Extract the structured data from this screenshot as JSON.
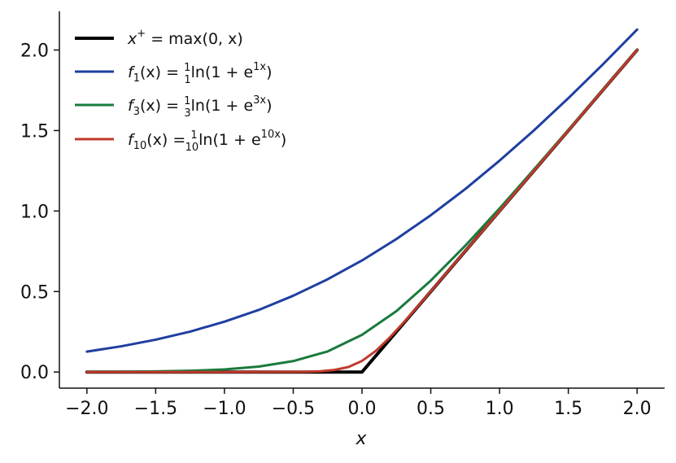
{
  "chart_data": {
    "type": "line",
    "xlabel": "x",
    "ylabel": "",
    "xlim": [
      -2.2,
      2.2
    ],
    "ylim": [
      -0.1,
      2.24
    ],
    "xticks": [
      -2.0,
      -1.5,
      -1.0,
      -0.5,
      0.0,
      0.5,
      1.0,
      1.5,
      2.0
    ],
    "yticks": [
      0.0,
      0.5,
      1.0,
      1.5,
      2.0
    ],
    "xtick_labels": [
      "−2.0",
      "−1.5",
      "−1.0",
      "−0.5",
      "0.0",
      "0.5",
      "1.0",
      "1.5",
      "2.0"
    ],
    "ytick_labels": [
      "0.0",
      "0.5",
      "1.0",
      "1.5",
      "2.0"
    ],
    "legend_position": "top-left",
    "grid": false,
    "series": [
      {
        "color": "#000000",
        "legend": {
          "lhs": "x",
          "sup": "+",
          "rhs": " = max(0, x)"
        },
        "x": [
          -2.0,
          -1.5,
          -1.0,
          -0.5,
          0.0,
          0.5,
          1.0,
          1.5,
          2.0
        ],
        "y": [
          0.0,
          0.0,
          0.0,
          0.0,
          0.0,
          0.5,
          1.0,
          1.5,
          2.0
        ]
      },
      {
        "color": "#1f3fa0",
        "legend": {
          "fname": "f",
          "fsub": "1",
          "arg": "(x) = ",
          "num": "1",
          "den": "1",
          "body": "ln(1 + e",
          "exp": "1x",
          "close": ")"
        },
        "x": [
          -2.0,
          -1.75,
          -1.5,
          -1.25,
          -1.0,
          -0.75,
          -0.5,
          -0.25,
          0.0,
          0.25,
          0.5,
          0.75,
          1.0,
          1.25,
          1.5,
          1.75,
          2.0
        ],
        "y": [
          0.127,
          0.16,
          0.201,
          0.251,
          0.313,
          0.386,
          0.474,
          0.576,
          0.693,
          0.826,
          0.974,
          1.136,
          1.313,
          1.501,
          1.701,
          1.91,
          2.127
        ]
      },
      {
        "color": "#1a7a3c",
        "legend": {
          "fname": "f",
          "fsub": "3",
          "arg": "(x) = ",
          "num": "1",
          "den": "3",
          "body": "ln(1 + e",
          "exp": "3x",
          "close": ")"
        },
        "x": [
          -2.0,
          -1.75,
          -1.5,
          -1.25,
          -1.0,
          -0.75,
          -0.5,
          -0.25,
          0.0,
          0.25,
          0.5,
          0.75,
          1.0,
          1.25,
          1.5,
          1.75,
          2.0
        ],
        "y": [
          0.001,
          0.002,
          0.004,
          0.008,
          0.016,
          0.034,
          0.068,
          0.128,
          0.231,
          0.378,
          0.568,
          0.784,
          1.016,
          1.258,
          1.504,
          1.752,
          2.001
        ]
      },
      {
        "color": "#c0392b",
        "legend": {
          "fname": "f",
          "fsub": "10",
          "arg": "(x) = ",
          "num": "1",
          "den": "10",
          "body": "ln(1 + e",
          "exp": "10x",
          "close": ")"
        },
        "x": [
          -2.0,
          -1.5,
          -1.0,
          -0.5,
          -0.4,
          -0.3,
          -0.2,
          -0.1,
          0.0,
          0.1,
          0.2,
          0.3,
          0.4,
          0.5,
          1.0,
          1.5,
          2.0
        ],
        "y": [
          0.0,
          0.0,
          0.0,
          0.001,
          0.002,
          0.005,
          0.013,
          0.031,
          0.069,
          0.131,
          0.213,
          0.305,
          0.402,
          0.501,
          1.0,
          1.5,
          2.0
        ]
      }
    ]
  }
}
